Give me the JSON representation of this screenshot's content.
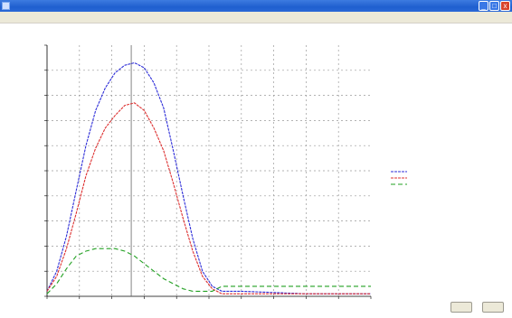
{
  "window": {
    "title": "",
    "icon": "app-icon",
    "controls": {
      "minimize": "_",
      "maximize": "□",
      "close": "x"
    }
  },
  "menu": {
    "items": [
      "",
      ""
    ]
  },
  "chart_data": {
    "type": "line",
    "title": "",
    "xlabel": "",
    "ylabel": "",
    "xlim": [
      300,
      800
    ],
    "ylim": [
      0,
      1.0
    ],
    "x_ticks": [],
    "y_ticks": [],
    "grid": true,
    "legend_placement": "right",
    "cursor_x": 430,
    "series": [
      {
        "name": "",
        "color": "#2d2dd8",
        "dash": "3,1",
        "x": [
          300,
          315,
          330,
          345,
          360,
          375,
          390,
          405,
          420,
          435,
          450,
          465,
          480,
          495,
          510,
          525,
          540,
          555,
          570,
          585,
          600,
          700,
          800
        ],
        "y": [
          0.02,
          0.1,
          0.24,
          0.42,
          0.6,
          0.74,
          0.83,
          0.89,
          0.92,
          0.93,
          0.91,
          0.85,
          0.75,
          0.58,
          0.4,
          0.23,
          0.1,
          0.04,
          0.02,
          0.02,
          0.02,
          0.01,
          0.01
        ]
      },
      {
        "name": "",
        "color": "#dd3030",
        "dash": "3,1",
        "x": [
          300,
          315,
          330,
          345,
          360,
          375,
          390,
          405,
          420,
          435,
          450,
          465,
          480,
          495,
          510,
          525,
          540,
          555,
          570,
          585,
          600,
          700,
          800
        ],
        "y": [
          0.02,
          0.08,
          0.19,
          0.33,
          0.48,
          0.59,
          0.67,
          0.72,
          0.76,
          0.77,
          0.74,
          0.67,
          0.58,
          0.45,
          0.31,
          0.18,
          0.08,
          0.03,
          0.01,
          0.01,
          0.01,
          0.01,
          0.01
        ]
      },
      {
        "name": "",
        "color": "#22a022",
        "dash": "5,3",
        "x": [
          300,
          315,
          330,
          345,
          360,
          375,
          390,
          405,
          420,
          435,
          450,
          465,
          480,
          495,
          510,
          525,
          540,
          555,
          570,
          585,
          600,
          700,
          800
        ],
        "y": [
          0.01,
          0.05,
          0.11,
          0.16,
          0.18,
          0.19,
          0.19,
          0.19,
          0.18,
          0.16,
          0.13,
          0.1,
          0.07,
          0.05,
          0.03,
          0.02,
          0.02,
          0.02,
          0.04,
          0.04,
          0.04,
          0.04,
          0.04
        ]
      }
    ]
  },
  "buttons": {
    "left": "",
    "right": ""
  }
}
